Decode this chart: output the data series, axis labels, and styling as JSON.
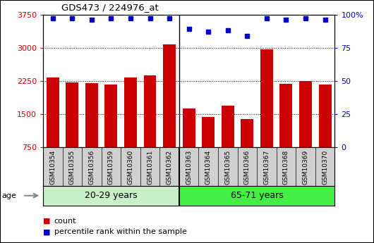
{
  "title": "GDS473 / 224976_at",
  "samples": [
    "GSM10354",
    "GSM10355",
    "GSM10356",
    "GSM10359",
    "GSM10360",
    "GSM10361",
    "GSM10362",
    "GSM10363",
    "GSM10364",
    "GSM10365",
    "GSM10366",
    "GSM10367",
    "GSM10368",
    "GSM10369",
    "GSM10370"
  ],
  "counts": [
    2320,
    2210,
    2200,
    2170,
    2320,
    2380,
    3080,
    1620,
    1430,
    1680,
    1390,
    2970,
    2180,
    2250,
    2170
  ],
  "percentile_ranks": [
    97,
    97,
    96,
    97,
    97,
    97,
    97,
    89,
    87,
    88,
    84,
    97,
    96,
    97,
    96
  ],
  "group1_label": "20-29 years",
  "group2_label": "65-71 years",
  "group1_count": 7,
  "group2_count": 8,
  "bar_color": "#cc0000",
  "dot_color": "#0000cc",
  "group1_bg": "#c8f0c8",
  "group2_bg": "#44ee44",
  "tick_bg": "#d0d0d0",
  "ylim_left": [
    750,
    3750
  ],
  "ylim_right": [
    0,
    100
  ],
  "yticks_left": [
    750,
    1500,
    2250,
    3000,
    3750
  ],
  "yticks_right": [
    0,
    25,
    50,
    75,
    100
  ],
  "legend_items": [
    "count",
    "percentile rank within the sample"
  ],
  "age_label": "age"
}
